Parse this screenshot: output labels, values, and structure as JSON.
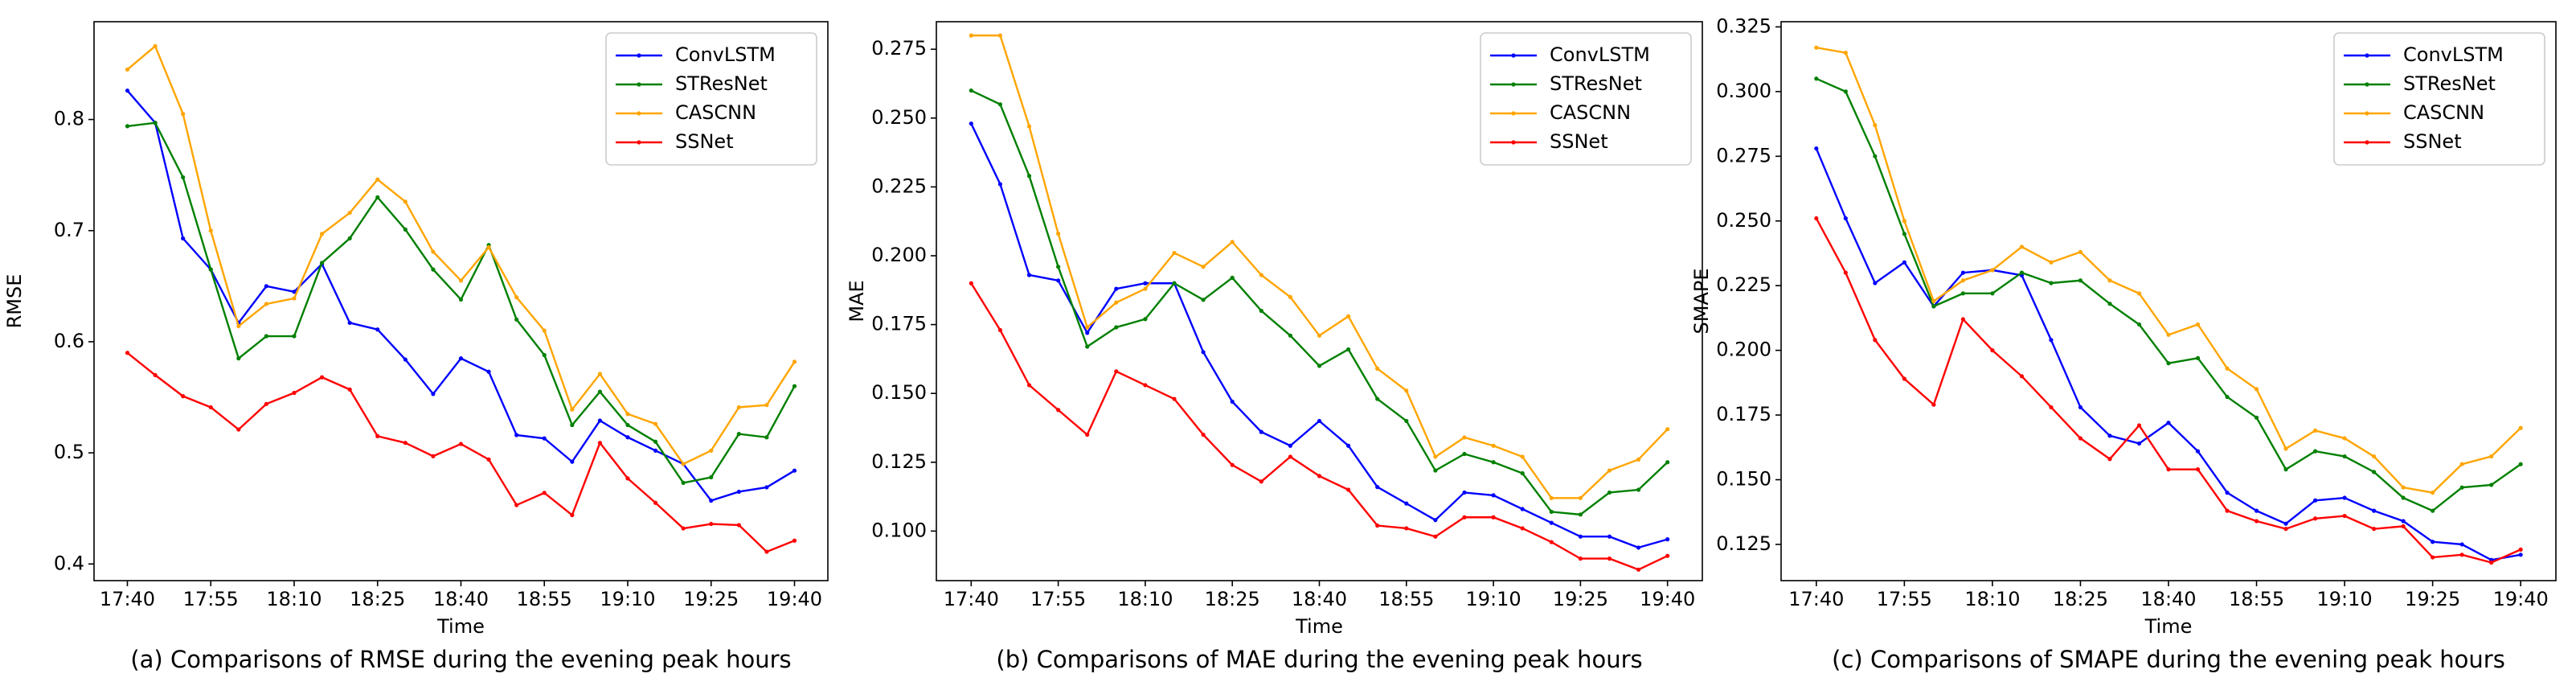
{
  "chart_data": [
    {
      "type": "line",
      "caption": "(a) Comparisons of RMSE during the evening peak hours",
      "xlabel": "Time",
      "ylabel": "RMSE",
      "categories": [
        "17:40",
        null,
        null,
        "17:55",
        null,
        null,
        "18:10",
        null,
        null,
        "18:25",
        null,
        null,
        "18:40",
        null,
        null,
        "18:55",
        null,
        null,
        "19:10",
        null,
        null,
        "19:25",
        null,
        null,
        "19:40"
      ],
      "series": [
        {
          "name": "ConvLSTM",
          "color": "#0000ff",
          "values": [
            0.826,
            0.797,
            0.693,
            0.665,
            0.617,
            0.65,
            0.645,
            0.67,
            0.617,
            0.611,
            0.584,
            0.553,
            0.585,
            0.573,
            0.516,
            0.513,
            0.492,
            0.529,
            0.514,
            0.502,
            0.49,
            0.457,
            0.465,
            0.469,
            0.484
          ]
        },
        {
          "name": "STResNet",
          "color": "#008000",
          "values": [
            0.794,
            0.797,
            0.748,
            0.665,
            0.585,
            0.605,
            0.605,
            0.671,
            0.693,
            0.73,
            0.701,
            0.665,
            0.638,
            0.687,
            0.62,
            0.588,
            0.525,
            0.555,
            0.525,
            0.51,
            0.473,
            0.478,
            0.517,
            0.514,
            0.56
          ]
        },
        {
          "name": "CASCNN",
          "color": "#ffa500",
          "values": [
            0.845,
            0.866,
            0.805,
            0.7,
            0.614,
            0.634,
            0.639,
            0.697,
            0.716,
            0.746,
            0.726,
            0.681,
            0.655,
            0.685,
            0.64,
            0.61,
            0.539,
            0.571,
            0.535,
            0.526,
            0.49,
            0.502,
            0.541,
            0.543,
            0.582
          ]
        },
        {
          "name": "SSNet",
          "color": "#ff0000",
          "values": [
            0.59,
            0.57,
            0.551,
            0.541,
            0.521,
            0.544,
            0.554,
            0.568,
            0.557,
            0.515,
            0.509,
            0.497,
            0.508,
            0.494,
            0.453,
            0.464,
            0.444,
            0.509,
            0.477,
            0.455,
            0.432,
            0.436,
            0.435,
            0.411,
            0.421
          ]
        }
      ],
      "ylim": [
        0.385,
        0.888
      ],
      "yticks": [
        0.4,
        0.5,
        0.6,
        0.7,
        0.8
      ],
      "legend": "upper right"
    },
    {
      "type": "line",
      "caption": "(b) Comparisons of MAE during the evening peak hours",
      "xlabel": "Time",
      "ylabel": "MAE",
      "categories": [
        "17:40",
        null,
        null,
        "17:55",
        null,
        null,
        "18:10",
        null,
        null,
        "18:25",
        null,
        null,
        "18:40",
        null,
        null,
        "18:55",
        null,
        null,
        "19:10",
        null,
        null,
        "19:25",
        null,
        null,
        "19:40"
      ],
      "series": [
        {
          "name": "ConvLSTM",
          "color": "#0000ff",
          "values": [
            0.248,
            0.226,
            0.193,
            0.191,
            0.172,
            0.188,
            0.19,
            0.19,
            0.165,
            0.147,
            0.136,
            0.131,
            0.14,
            0.131,
            0.116,
            0.11,
            0.104,
            0.114,
            0.113,
            0.108,
            0.103,
            0.098,
            0.098,
            0.094,
            0.097
          ]
        },
        {
          "name": "STResNet",
          "color": "#008000",
          "values": [
            0.26,
            0.255,
            0.229,
            0.196,
            0.167,
            0.174,
            0.177,
            0.19,
            0.184,
            0.192,
            0.18,
            0.171,
            0.16,
            0.166,
            0.148,
            0.14,
            0.122,
            0.128,
            0.125,
            0.121,
            0.107,
            0.106,
            0.114,
            0.115,
            0.125
          ]
        },
        {
          "name": "CASCNN",
          "color": "#ffa500",
          "values": [
            0.28,
            0.28,
            0.247,
            0.208,
            0.174,
            0.183,
            0.188,
            0.201,
            0.196,
            0.205,
            0.193,
            0.185,
            0.171,
            0.178,
            0.159,
            0.151,
            0.127,
            0.134,
            0.131,
            0.127,
            0.112,
            0.112,
            0.122,
            0.126,
            0.137
          ]
        },
        {
          "name": "SSNet",
          "color": "#ff0000",
          "values": [
            0.19,
            0.173,
            0.153,
            0.144,
            0.135,
            0.158,
            0.153,
            0.148,
            0.135,
            0.124,
            0.118,
            0.127,
            0.12,
            0.115,
            0.102,
            0.101,
            0.098,
            0.105,
            0.105,
            0.101,
            0.096,
            0.09,
            0.09,
            0.086,
            0.091
          ]
        }
      ],
      "ylim": [
        0.082,
        0.285
      ],
      "yticks": [
        {
          "value": 0.1,
          "label": "0.100"
        },
        0.125,
        {
          "value": 0.15,
          "label": "0.150"
        },
        0.175,
        {
          "value": 0.2,
          "label": "0.200"
        },
        0.225,
        {
          "value": 0.25,
          "label": "0.250"
        },
        0.275
      ],
      "legend": "upper right"
    },
    {
      "type": "line",
      "caption": "(c) Comparisons of SMAPE during the evening peak hours",
      "xlabel": "Time",
      "ylabel": "SMAPE",
      "categories": [
        "17:40",
        null,
        null,
        "17:55",
        null,
        null,
        "18:10",
        null,
        null,
        "18:25",
        null,
        null,
        "18:40",
        null,
        null,
        "18:55",
        null,
        null,
        "19:10",
        null,
        null,
        "19:25",
        null,
        null,
        "19:40"
      ],
      "series": [
        {
          "name": "ConvLSTM",
          "color": "#0000ff",
          "values": [
            0.278,
            0.251,
            0.226,
            0.234,
            0.217,
            0.23,
            0.231,
            0.229,
            0.204,
            0.178,
            0.167,
            0.164,
            0.172,
            0.161,
            0.145,
            0.138,
            0.133,
            0.142,
            0.143,
            0.138,
            0.134,
            0.126,
            0.125,
            0.119,
            0.121
          ]
        },
        {
          "name": "STResNet",
          "color": "#008000",
          "values": [
            0.305,
            0.3,
            0.275,
            0.245,
            0.217,
            0.222,
            0.222,
            0.23,
            0.226,
            0.227,
            0.218,
            0.21,
            0.195,
            0.197,
            0.182,
            0.174,
            0.154,
            0.161,
            0.159,
            0.153,
            0.143,
            0.138,
            0.147,
            0.148,
            0.156
          ]
        },
        {
          "name": "CASCNN",
          "color": "#ffa500",
          "values": [
            0.317,
            0.315,
            0.287,
            0.25,
            0.219,
            0.227,
            0.231,
            0.24,
            0.234,
            0.238,
            0.227,
            0.222,
            0.206,
            0.21,
            0.193,
            0.185,
            0.162,
            0.169,
            0.166,
            0.159,
            0.147,
            0.145,
            0.156,
            0.159,
            0.17
          ]
        },
        {
          "name": "SSNet",
          "color": "#ff0000",
          "values": [
            0.251,
            0.23,
            0.204,
            0.189,
            0.179,
            0.212,
            0.2,
            0.19,
            0.178,
            0.166,
            0.158,
            0.171,
            0.154,
            0.154,
            0.138,
            0.134,
            0.131,
            0.135,
            0.136,
            0.131,
            0.132,
            0.12,
            0.121,
            0.118,
            0.123
          ]
        }
      ],
      "ylim": [
        0.111,
        0.327
      ],
      "yticks": [
        0.125,
        {
          "value": 0.15,
          "label": "0.150"
        },
        0.175,
        {
          "value": 0.2,
          "label": "0.200"
        },
        0.225,
        {
          "value": 0.25,
          "label": "0.250"
        },
        0.275,
        {
          "value": 0.3,
          "label": "0.300"
        },
        0.325
      ],
      "legend": "upper right"
    }
  ]
}
